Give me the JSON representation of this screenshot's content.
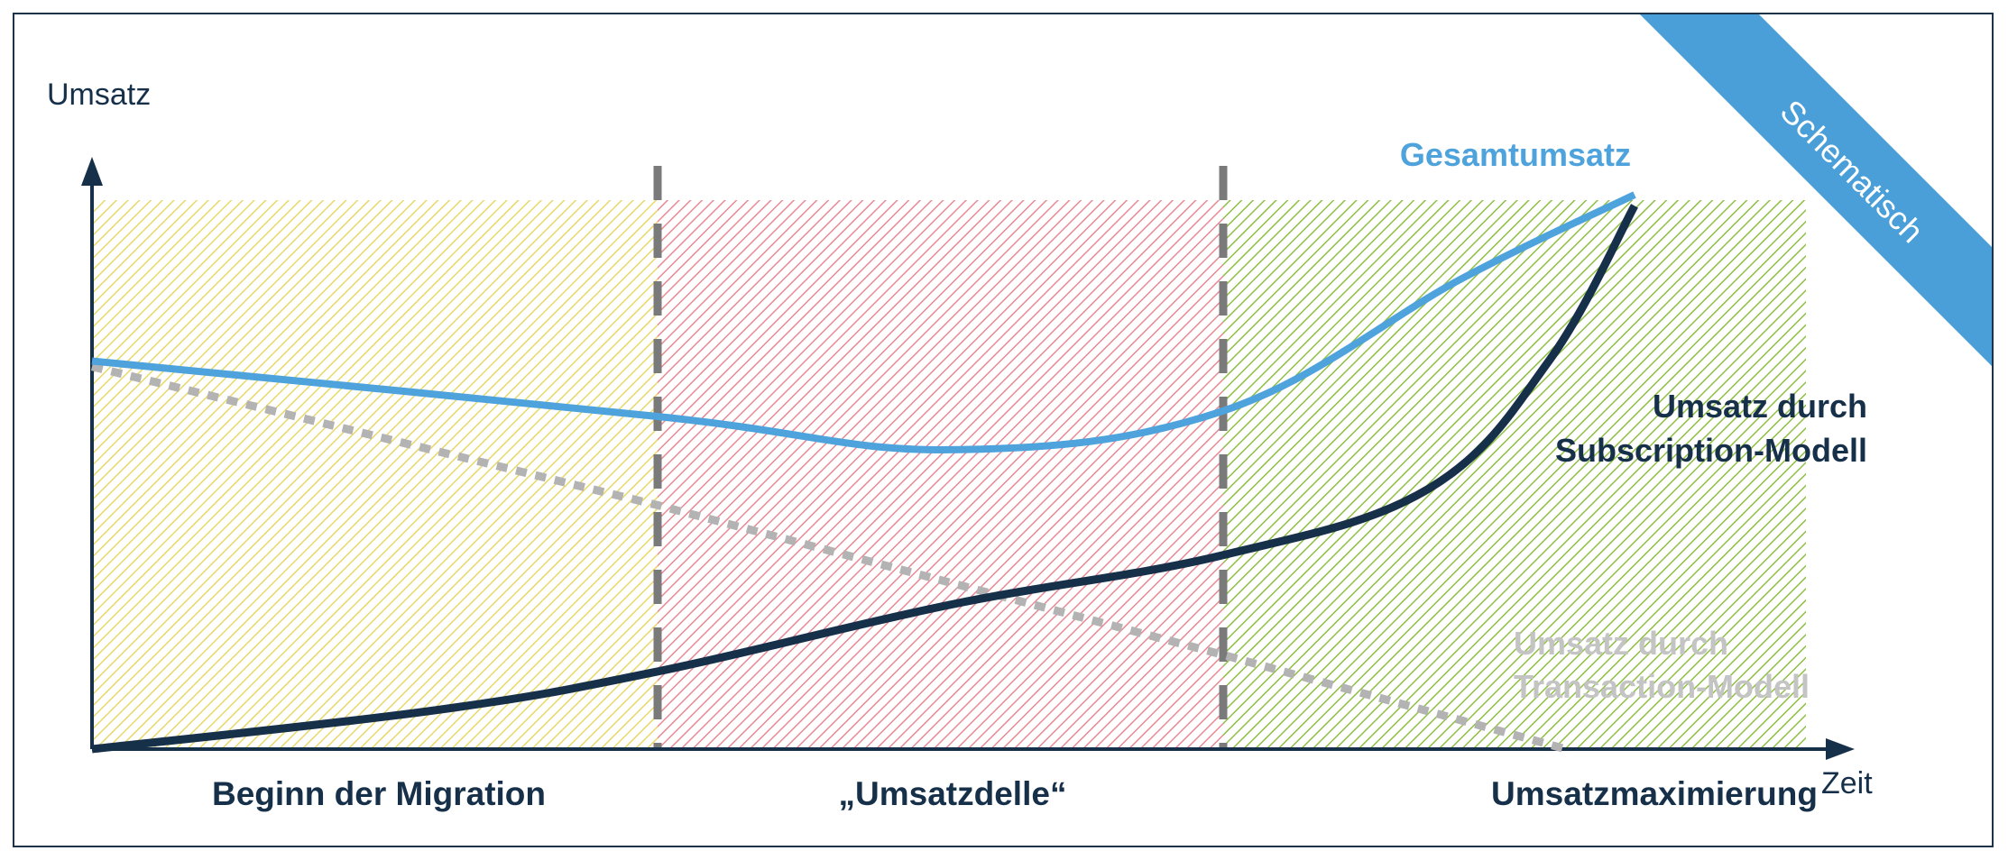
{
  "ribbon": {
    "text": "Schematisch",
    "color": "#4a9fd8"
  },
  "chart_data": {
    "type": "line",
    "xlabel": "Zeit",
    "ylabel": "Umsatz",
    "x_axis_numeric": false,
    "y_axis_numeric": false,
    "phases": [
      {
        "name": "Beginn der Migration",
        "start": 0,
        "end": 0.33,
        "color": "#e8d86a"
      },
      {
        "name": "„Umsatzdelle“",
        "start": 0.33,
        "end": 0.66,
        "color": "#e88a95"
      },
      {
        "name": "Umsatzmaximierung",
        "start": 0.66,
        "end": 1.0,
        "color": "#8fbf45"
      }
    ],
    "series": [
      {
        "name": "Gesamtumsatz",
        "color": "#4fa3dc",
        "style": "solid",
        "x": [
          0.0,
          0.33,
          0.5,
          0.66,
          0.8,
          0.9
        ],
        "y": [
          0.7,
          0.6,
          0.54,
          0.61,
          0.85,
          1.0
        ]
      },
      {
        "name": "Umsatz durch Subscription-Modell",
        "color": "#17304a",
        "style": "solid",
        "x": [
          0.0,
          0.2,
          0.33,
          0.5,
          0.66,
          0.78,
          0.85,
          0.9
        ],
        "y": [
          0.0,
          0.07,
          0.14,
          0.26,
          0.35,
          0.47,
          0.7,
          0.98
        ]
      },
      {
        "name": "Umsatz durch Transaction-Modell",
        "color": "#b3b3b3",
        "style": "dotted",
        "x": [
          0.0,
          0.33,
          0.66,
          0.86
        ],
        "y": [
          0.69,
          0.44,
          0.17,
          0.0
        ]
      }
    ],
    "series_labels": [
      {
        "lines": [
          "Gesamtumsatz"
        ],
        "color": "#4fa3dc"
      },
      {
        "lines": [
          "Umsatz durch",
          "Subscription-Modell"
        ],
        "color": "#17304a"
      },
      {
        "lines": [
          "Umsatz durch",
          "Transaction-Modell"
        ],
        "color": "#c4c4c4"
      }
    ]
  }
}
